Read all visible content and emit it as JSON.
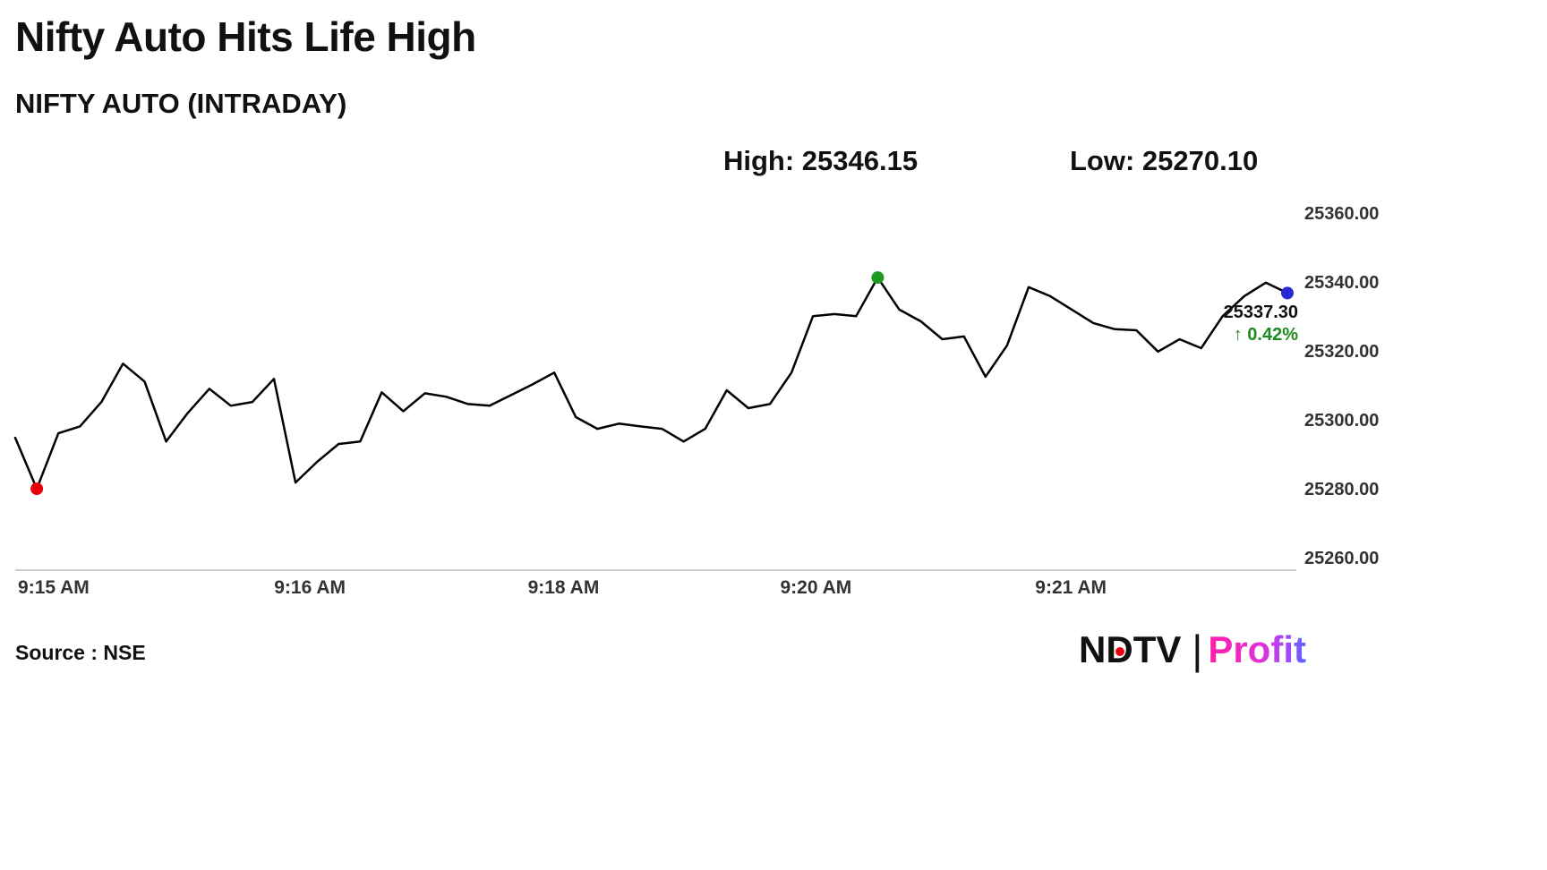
{
  "header": {
    "title": "Nifty Auto Hits Life High",
    "subtitle": "NIFTY AUTO (INTRADAY)",
    "high_label": "High: 25346.15",
    "low_label": "Low: 25270.10"
  },
  "annotation": {
    "price": "25337.30",
    "change": "↑ 0.42%"
  },
  "footer": {
    "source": "Source : NSE",
    "brand_ndtv_n": "N",
    "brand_ndtv_d": "D",
    "brand_ndtv_tv": "TV",
    "brand_separator": "|",
    "brand_profit": "Profit"
  },
  "chart_data": {
    "type": "line",
    "title": "NIFTY AUTO (INTRADAY)",
    "high": 25346.15,
    "low": 25270.1,
    "last": 25337.3,
    "change_pct": 0.42,
    "ylim": [
      25260,
      25360
    ],
    "y_ticks": [
      {
        "value": 25360,
        "label": "25360.00"
      },
      {
        "value": 25340,
        "label": "25340.00"
      },
      {
        "value": 25320,
        "label": "25320.00"
      },
      {
        "value": 25300,
        "label": "25300.00"
      },
      {
        "value": 25280,
        "label": "25280.00"
      },
      {
        "value": 25260,
        "label": "25260.00"
      }
    ],
    "x_ticks": [
      {
        "label": "9:15 AM",
        "pos": 0.03
      },
      {
        "label": "9:16 AM",
        "pos": 0.23
      },
      {
        "label": "9:18 AM",
        "pos": 0.428
      },
      {
        "label": "9:20 AM",
        "pos": 0.625
      },
      {
        "label": "9:21 AM",
        "pos": 0.824
      }
    ],
    "values": [
      25295.3,
      25280.5,
      25296.6,
      25298.6,
      25305.7,
      25316.8,
      25311.6,
      25294.2,
      25302.5,
      25309.5,
      25304.6,
      25305.7,
      25312.4,
      25282.3,
      25288.3,
      25293.5,
      25294.2,
      25308.5,
      25303.0,
      25308.2,
      25307.2,
      25305.1,
      25304.6,
      25307.7,
      25310.8,
      25314.2,
      25301.3,
      25297.9,
      25299.4,
      25298.6,
      25297.9,
      25294.2,
      25297.9,
      25309.1,
      25303.9,
      25305.1,
      25314.2,
      25330.6,
      25331.2,
      25330.6,
      25341.8,
      25332.5,
      25329.1,
      25323.9,
      25324.7,
      25313.0,
      25322.1,
      25339.0,
      25336.4,
      25332.5,
      25328.6,
      25326.8,
      25326.5,
      25320.3,
      25323.9,
      25321.3,
      25330.6,
      25336.4,
      25340.3,
      25337.3
    ],
    "markers": {
      "low_index": 1,
      "high_index": 40,
      "last_index": 59
    },
    "colors": {
      "line": "#000000",
      "low_dot": "#e8000d",
      "high_dot": "#1f9a1f",
      "last_dot": "#2a2ad4",
      "change_text": "#1f8a1f"
    },
    "legend": "none",
    "grid": "off"
  }
}
